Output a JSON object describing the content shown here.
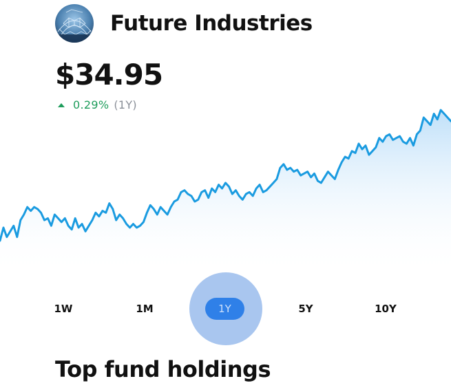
{
  "fund": {
    "name": "Future Industries",
    "avatar_icon": "geodesic-dome-photo"
  },
  "price": "$34.95",
  "change": {
    "direction": "up",
    "percent": "0.29%",
    "period": "(1Y)",
    "color": "#1f9d5c"
  },
  "chart_data": {
    "type": "area",
    "color": "#1a9be0",
    "fill": "#bfe0f9",
    "grid": false,
    "values": [
      30.8,
      31.5,
      31.0,
      31.3,
      31.6,
      31.0,
      31.9,
      32.2,
      32.6,
      32.4,
      32.6,
      32.5,
      32.3,
      31.9,
      32.0,
      31.6,
      32.2,
      32.0,
      31.8,
      32.0,
      31.6,
      31.4,
      32.0,
      31.5,
      31.7,
      31.3,
      31.6,
      31.9,
      32.3,
      32.1,
      32.4,
      32.3,
      32.8,
      32.5,
      31.9,
      32.2,
      32.0,
      31.7,
      31.5,
      31.7,
      31.5,
      31.6,
      31.8,
      32.3,
      32.7,
      32.5,
      32.2,
      32.6,
      32.4,
      32.2,
      32.6,
      32.9,
      33.0,
      33.4,
      33.5,
      33.3,
      33.2,
      32.9,
      33.0,
      33.4,
      33.5,
      33.1,
      33.6,
      33.4,
      33.8,
      33.6,
      33.9,
      33.7,
      33.3,
      33.5,
      33.2,
      33.0,
      33.3,
      33.4,
      33.2,
      33.6,
      33.8,
      33.4,
      33.5,
      33.7,
      33.9,
      34.1,
      34.7,
      34.9,
      34.6,
      34.7,
      34.5,
      34.6,
      34.3,
      34.4,
      34.5,
      34.2,
      34.4,
      34.0,
      33.9,
      34.2,
      34.5,
      34.3,
      34.1,
      34.6,
      35.0,
      35.3,
      35.2,
      35.6,
      35.5,
      36.0,
      35.7,
      35.9,
      35.4,
      35.6,
      35.8,
      36.3,
      36.1,
      36.4,
      36.5,
      36.2,
      36.3,
      36.4,
      36.1,
      36.0,
      36.3,
      35.9,
      36.5,
      36.7,
      37.4,
      37.2,
      37.0,
      37.6,
      37.3,
      37.8,
      37.6,
      37.4,
      37.2
    ]
  },
  "range_tabs": {
    "tab_1w": "1W",
    "tab_1m": "1M",
    "tab_1y": "1Y",
    "tab_5y": "5Y",
    "tab_10y": "10Y",
    "selected": "1Y",
    "accent": "#2f80e8"
  },
  "section": {
    "title": "Top fund holdings"
  }
}
